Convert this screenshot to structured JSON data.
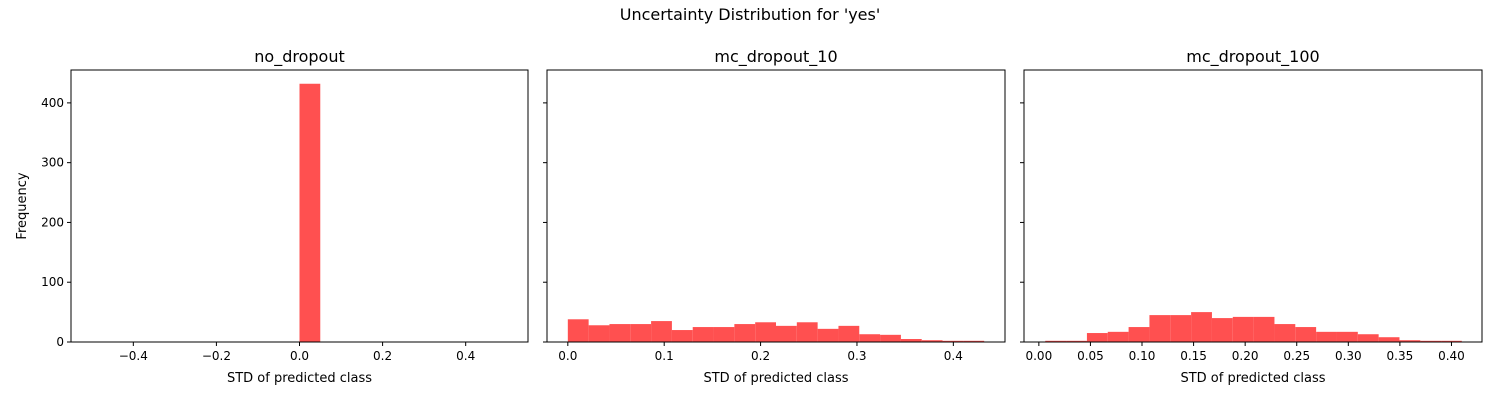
{
  "figure": {
    "suptitle": "Uncertainty Distribution for 'yes'",
    "bar_color": "#ff5050"
  },
  "y_axis": {
    "label": "Frequency",
    "lim": [
      0,
      455
    ],
    "ticks": [
      0,
      100,
      200,
      300,
      400
    ],
    "shared": true
  },
  "chart_data": [
    {
      "type": "bar",
      "title": "no_dropout",
      "xlabel": "STD of predicted class",
      "ylabel": "Frequency",
      "xlim": [
        -0.55,
        0.55
      ],
      "xticks": [
        -0.4,
        -0.2,
        0.0,
        0.2,
        0.4
      ],
      "xtick_labels": [
        "−0.4",
        "−0.2",
        "0.0",
        "0.2",
        "0.4"
      ],
      "bin_edges": [
        0.0,
        0.05
      ],
      "values": [
        432
      ]
    },
    {
      "type": "bar",
      "title": "mc_dropout_10",
      "xlabel": "STD of predicted class",
      "xlim": [
        -0.0216,
        0.4536
      ],
      "xticks": [
        0.0,
        0.1,
        0.2,
        0.3,
        0.4
      ],
      "xtick_labels": [
        "0.0",
        "0.1",
        "0.2",
        "0.3",
        "0.4"
      ],
      "bin_edges": [
        0.0,
        0.0216,
        0.0432,
        0.0648,
        0.0864,
        0.108,
        0.1296,
        0.1512,
        0.1728,
        0.1944,
        0.216,
        0.2376,
        0.2592,
        0.2808,
        0.3024,
        0.324,
        0.3456,
        0.3672,
        0.3888,
        0.4104,
        0.432
      ],
      "values": [
        38,
        28,
        30,
        30,
        35,
        20,
        25,
        25,
        30,
        33,
        27,
        33,
        22,
        27,
        13,
        12,
        5,
        3,
        2,
        2
      ]
    },
    {
      "type": "bar",
      "title": "mc_dropout_100",
      "xlabel": "STD of predicted class",
      "xlim": [
        -0.0144,
        0.4296
      ],
      "xticks": [
        0.0,
        0.05,
        0.1,
        0.15,
        0.2,
        0.25,
        0.3,
        0.35,
        0.4
      ],
      "xtick_labels": [
        "0.00",
        "0.05",
        "0.10",
        "0.15",
        "0.20",
        "0.25",
        "0.30",
        "0.35",
        "0.40"
      ],
      "bin_edges": [
        0.0062,
        0.0264,
        0.0466,
        0.0668,
        0.087,
        0.1072,
        0.1274,
        0.1476,
        0.1678,
        0.188,
        0.2082,
        0.2284,
        0.2486,
        0.2688,
        0.289,
        0.3092,
        0.3294,
        0.3496,
        0.3698,
        0.39,
        0.41
      ],
      "values": [
        2,
        2,
        15,
        17,
        25,
        45,
        45,
        50,
        40,
        42,
        42,
        30,
        25,
        17,
        17,
        13,
        8,
        3,
        2,
        2
      ]
    }
  ]
}
